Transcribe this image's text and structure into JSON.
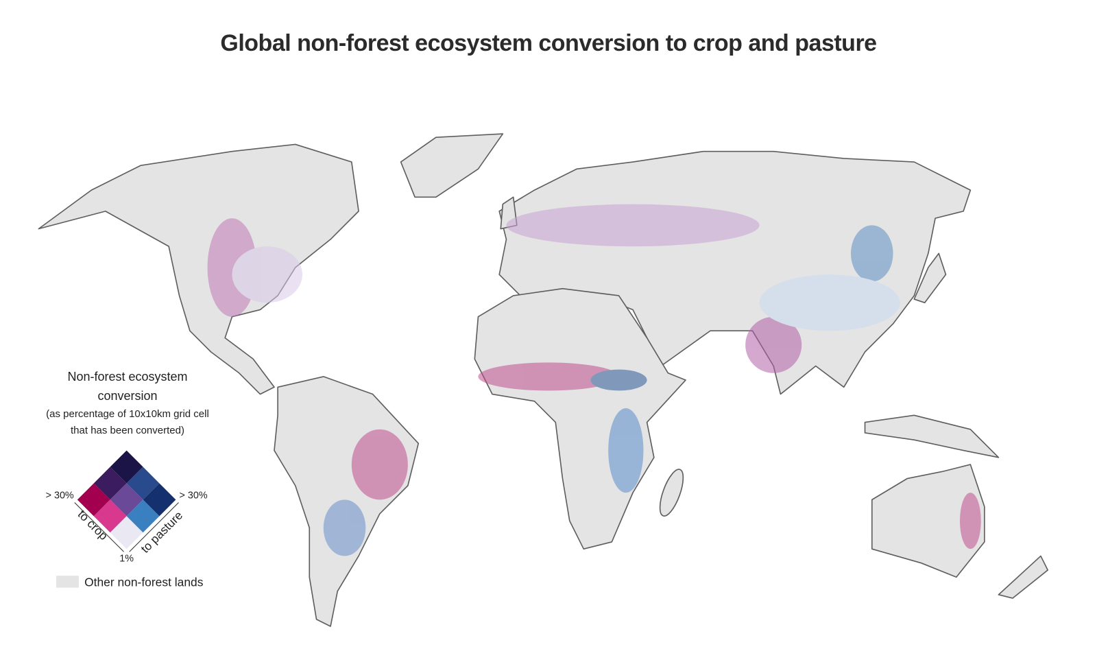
{
  "title": "Global non-forest ecosystem conversion to crop and pasture",
  "legend": {
    "title": "Non-forest ecosystem conversion",
    "subtitle": "(as percentage of 10x10km grid cell that has been converted)",
    "crop_max": "> 30%",
    "pasture_max": "> 30%",
    "min": "1%",
    "crop_axis": "to crop",
    "pasture_axis": "to pasture",
    "other": "Other non-forest lands"
  }
}
